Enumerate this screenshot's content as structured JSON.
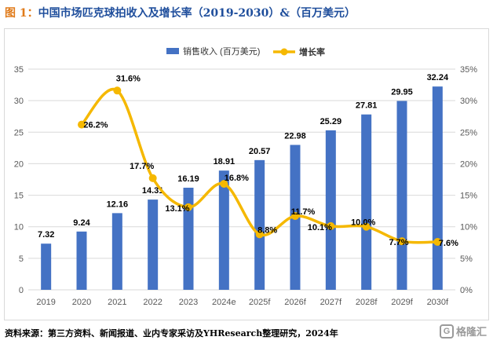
{
  "header": {
    "label": "图 1：",
    "title": "中国市场匹克球拍收入及增长率（2019-2030）&（百万美元）"
  },
  "footer": {
    "source": "资料来源：第三方资料、新闻报道、业内专家采访及YHResearch整理研究，2024年",
    "watermark": "格隆汇"
  },
  "colors": {
    "bar": "#4472c4",
    "line": "#f5b800",
    "grid": "#d9d9d9",
    "axis_text": "#595959"
  },
  "chart_data": {
    "type": "bar",
    "categories": [
      "2019",
      "2020",
      "2021",
      "2022",
      "2023",
      "2024e",
      "2025f",
      "2026f",
      "2027f",
      "2028f",
      "2029f",
      "2030f"
    ],
    "series": [
      {
        "name": "销售收入 (百万美元)",
        "type": "bar",
        "axis": "left",
        "values": [
          7.32,
          9.24,
          12.16,
          14.31,
          16.19,
          18.91,
          20.57,
          22.98,
          25.29,
          27.81,
          29.95,
          32.24
        ]
      },
      {
        "name": "增长率",
        "type": "line",
        "axis": "right",
        "values": [
          null,
          26.2,
          31.6,
          17.7,
          13.1,
          16.8,
          8.8,
          11.7,
          10.1,
          10.0,
          7.7,
          7.6
        ]
      }
    ],
    "left_axis": {
      "min": 0,
      "max": 35,
      "ticks": [
        0,
        5,
        10,
        15,
        20,
        25,
        30,
        35
      ]
    },
    "right_axis": {
      "min": 0,
      "max": 35,
      "ticks": [
        "0%",
        "5%",
        "10%",
        "15%",
        "20%",
        "25%",
        "30%",
        "35%"
      ]
    },
    "legend_position": "top-center",
    "grid": true
  }
}
